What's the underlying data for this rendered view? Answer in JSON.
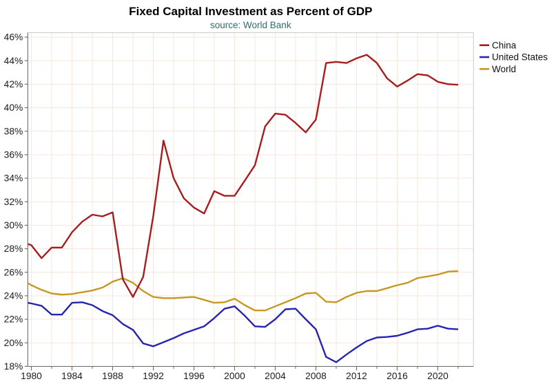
{
  "chart_data": {
    "type": "line",
    "title": "Fixed Capital Investment as Percent of GDP",
    "subtitle": "source: World Bank",
    "xlabel": "",
    "ylabel": "",
    "x": [
      1979,
      1980,
      1981,
      1982,
      1983,
      1984,
      1985,
      1986,
      1987,
      1988,
      1989,
      1990,
      1991,
      1992,
      1993,
      1994,
      1995,
      1996,
      1997,
      1998,
      1999,
      2000,
      2001,
      2002,
      2003,
      2004,
      2005,
      2006,
      2007,
      2008,
      2009,
      2010,
      2011,
      2012,
      2013,
      2014,
      2015,
      2016,
      2017,
      2018,
      2019,
      2020,
      2021,
      2022
    ],
    "series": [
      {
        "name": "China",
        "color": "#a51d1d",
        "values": [
          28.6,
          28.3,
          27.2,
          28.1,
          28.1,
          29.4,
          30.3,
          30.9,
          30.75,
          31.1,
          25.4,
          23.9,
          25.6,
          30.8,
          37.2,
          34.0,
          32.3,
          31.5,
          31.0,
          32.9,
          32.5,
          32.5,
          33.8,
          35.1,
          38.4,
          39.5,
          39.4,
          38.7,
          37.9,
          39.0,
          43.8,
          43.9,
          43.8,
          44.2,
          44.5,
          43.8,
          42.5,
          41.8,
          42.3,
          42.85,
          42.75,
          42.2,
          42.0,
          41.95
        ]
      },
      {
        "name": "United States",
        "color": "#2424ae",
        "values": [
          23.5,
          23.35,
          23.15,
          22.4,
          22.4,
          23.4,
          23.45,
          23.2,
          22.7,
          22.35,
          21.6,
          21.1,
          19.95,
          19.7,
          20.05,
          20.4,
          20.8,
          21.1,
          21.4,
          22.1,
          22.9,
          23.1,
          22.3,
          21.4,
          21.35,
          22.0,
          22.85,
          22.9,
          22.0,
          21.15,
          18.8,
          18.35,
          19.0,
          19.6,
          20.15,
          20.45,
          20.5,
          20.6,
          20.85,
          21.15,
          21.2,
          21.45,
          21.2,
          21.15
        ]
      },
      {
        "name": "World",
        "color": "#c7981f",
        "values": [
          25.4,
          24.9,
          24.5,
          24.2,
          24.1,
          24.15,
          24.3,
          24.45,
          24.7,
          25.2,
          25.5,
          25.1,
          24.4,
          23.9,
          23.8,
          23.8,
          23.85,
          23.9,
          23.65,
          23.4,
          23.45,
          23.75,
          23.2,
          22.75,
          22.75,
          23.1,
          23.45,
          23.8,
          24.2,
          24.25,
          23.5,
          23.45,
          23.9,
          24.25,
          24.4,
          24.4,
          24.65,
          24.9,
          25.1,
          25.5,
          25.65,
          25.8,
          26.05,
          26.1
        ]
      }
    ],
    "ylim": [
      18,
      46.35
    ],
    "y_ticks": {
      "values": [
        18,
        20,
        22,
        24,
        26,
        28,
        30,
        32,
        34,
        36,
        38,
        40,
        42,
        44,
        46
      ],
      "labels": [
        "18%",
        "20%",
        "22%",
        "24%",
        "26%",
        "28%",
        "30%",
        "32%",
        "34%",
        "36%",
        "38%",
        "40%",
        "42%",
        "44%",
        "46%"
      ]
    },
    "x_ticks": {
      "values": [
        1980,
        1984,
        1988,
        1992,
        1996,
        2000,
        2004,
        2008,
        2012,
        2016,
        2020
      ],
      "labels": [
        "1980",
        "1984",
        "1988",
        "1992",
        "1996",
        "2000",
        "2004",
        "2008",
        "2012",
        "2016",
        "2020"
      ]
    },
    "grid": true,
    "legend_position": "top-right-outside",
    "legend_labels": [
      "China",
      "United States",
      "World"
    ],
    "colors": {
      "subtitle": "#2f6b6b",
      "grid": "#f9e5da",
      "axis_dark": "#6a6a6a",
      "axis_light": "#cccccc",
      "tick_label": "#1c1c1c",
      "title": "#000000",
      "background": "#ffffff"
    }
  }
}
